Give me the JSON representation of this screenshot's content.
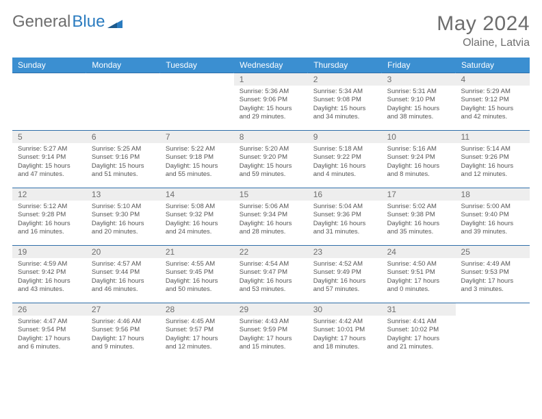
{
  "logo": {
    "part1": "General",
    "part2": "Blue"
  },
  "title": {
    "month": "May 2024",
    "location": "Olaine, Latvia"
  },
  "colors": {
    "header_bg": "#3b8fd1",
    "header_text": "#ffffff",
    "border": "#2d6da8",
    "daynum_bg": "#eeeeee",
    "text_muted": "#6d6d6d",
    "body_text": "#555555",
    "logo_blue": "#2a7bbf"
  },
  "calendar": {
    "headers": [
      "Sunday",
      "Monday",
      "Tuesday",
      "Wednesday",
      "Thursday",
      "Friday",
      "Saturday"
    ],
    "weeks": [
      [
        {
          "num": "",
          "lines": []
        },
        {
          "num": "",
          "lines": []
        },
        {
          "num": "",
          "lines": []
        },
        {
          "num": "1",
          "lines": [
            "Sunrise: 5:36 AM",
            "Sunset: 9:06 PM",
            "Daylight: 15 hours",
            "and 29 minutes."
          ]
        },
        {
          "num": "2",
          "lines": [
            "Sunrise: 5:34 AM",
            "Sunset: 9:08 PM",
            "Daylight: 15 hours",
            "and 34 minutes."
          ]
        },
        {
          "num": "3",
          "lines": [
            "Sunrise: 5:31 AM",
            "Sunset: 9:10 PM",
            "Daylight: 15 hours",
            "and 38 minutes."
          ]
        },
        {
          "num": "4",
          "lines": [
            "Sunrise: 5:29 AM",
            "Sunset: 9:12 PM",
            "Daylight: 15 hours",
            "and 42 minutes."
          ]
        }
      ],
      [
        {
          "num": "5",
          "lines": [
            "Sunrise: 5:27 AM",
            "Sunset: 9:14 PM",
            "Daylight: 15 hours",
            "and 47 minutes."
          ]
        },
        {
          "num": "6",
          "lines": [
            "Sunrise: 5:25 AM",
            "Sunset: 9:16 PM",
            "Daylight: 15 hours",
            "and 51 minutes."
          ]
        },
        {
          "num": "7",
          "lines": [
            "Sunrise: 5:22 AM",
            "Sunset: 9:18 PM",
            "Daylight: 15 hours",
            "and 55 minutes."
          ]
        },
        {
          "num": "8",
          "lines": [
            "Sunrise: 5:20 AM",
            "Sunset: 9:20 PM",
            "Daylight: 15 hours",
            "and 59 minutes."
          ]
        },
        {
          "num": "9",
          "lines": [
            "Sunrise: 5:18 AM",
            "Sunset: 9:22 PM",
            "Daylight: 16 hours",
            "and 4 minutes."
          ]
        },
        {
          "num": "10",
          "lines": [
            "Sunrise: 5:16 AM",
            "Sunset: 9:24 PM",
            "Daylight: 16 hours",
            "and 8 minutes."
          ]
        },
        {
          "num": "11",
          "lines": [
            "Sunrise: 5:14 AM",
            "Sunset: 9:26 PM",
            "Daylight: 16 hours",
            "and 12 minutes."
          ]
        }
      ],
      [
        {
          "num": "12",
          "lines": [
            "Sunrise: 5:12 AM",
            "Sunset: 9:28 PM",
            "Daylight: 16 hours",
            "and 16 minutes."
          ]
        },
        {
          "num": "13",
          "lines": [
            "Sunrise: 5:10 AM",
            "Sunset: 9:30 PM",
            "Daylight: 16 hours",
            "and 20 minutes."
          ]
        },
        {
          "num": "14",
          "lines": [
            "Sunrise: 5:08 AM",
            "Sunset: 9:32 PM",
            "Daylight: 16 hours",
            "and 24 minutes."
          ]
        },
        {
          "num": "15",
          "lines": [
            "Sunrise: 5:06 AM",
            "Sunset: 9:34 PM",
            "Daylight: 16 hours",
            "and 28 minutes."
          ]
        },
        {
          "num": "16",
          "lines": [
            "Sunrise: 5:04 AM",
            "Sunset: 9:36 PM",
            "Daylight: 16 hours",
            "and 31 minutes."
          ]
        },
        {
          "num": "17",
          "lines": [
            "Sunrise: 5:02 AM",
            "Sunset: 9:38 PM",
            "Daylight: 16 hours",
            "and 35 minutes."
          ]
        },
        {
          "num": "18",
          "lines": [
            "Sunrise: 5:00 AM",
            "Sunset: 9:40 PM",
            "Daylight: 16 hours",
            "and 39 minutes."
          ]
        }
      ],
      [
        {
          "num": "19",
          "lines": [
            "Sunrise: 4:59 AM",
            "Sunset: 9:42 PM",
            "Daylight: 16 hours",
            "and 43 minutes."
          ]
        },
        {
          "num": "20",
          "lines": [
            "Sunrise: 4:57 AM",
            "Sunset: 9:44 PM",
            "Daylight: 16 hours",
            "and 46 minutes."
          ]
        },
        {
          "num": "21",
          "lines": [
            "Sunrise: 4:55 AM",
            "Sunset: 9:45 PM",
            "Daylight: 16 hours",
            "and 50 minutes."
          ]
        },
        {
          "num": "22",
          "lines": [
            "Sunrise: 4:54 AM",
            "Sunset: 9:47 PM",
            "Daylight: 16 hours",
            "and 53 minutes."
          ]
        },
        {
          "num": "23",
          "lines": [
            "Sunrise: 4:52 AM",
            "Sunset: 9:49 PM",
            "Daylight: 16 hours",
            "and 57 minutes."
          ]
        },
        {
          "num": "24",
          "lines": [
            "Sunrise: 4:50 AM",
            "Sunset: 9:51 PM",
            "Daylight: 17 hours",
            "and 0 minutes."
          ]
        },
        {
          "num": "25",
          "lines": [
            "Sunrise: 4:49 AM",
            "Sunset: 9:53 PM",
            "Daylight: 17 hours",
            "and 3 minutes."
          ]
        }
      ],
      [
        {
          "num": "26",
          "lines": [
            "Sunrise: 4:47 AM",
            "Sunset: 9:54 PM",
            "Daylight: 17 hours",
            "and 6 minutes."
          ]
        },
        {
          "num": "27",
          "lines": [
            "Sunrise: 4:46 AM",
            "Sunset: 9:56 PM",
            "Daylight: 17 hours",
            "and 9 minutes."
          ]
        },
        {
          "num": "28",
          "lines": [
            "Sunrise: 4:45 AM",
            "Sunset: 9:57 PM",
            "Daylight: 17 hours",
            "and 12 minutes."
          ]
        },
        {
          "num": "29",
          "lines": [
            "Sunrise: 4:43 AM",
            "Sunset: 9:59 PM",
            "Daylight: 17 hours",
            "and 15 minutes."
          ]
        },
        {
          "num": "30",
          "lines": [
            "Sunrise: 4:42 AM",
            "Sunset: 10:01 PM",
            "Daylight: 17 hours",
            "and 18 minutes."
          ]
        },
        {
          "num": "31",
          "lines": [
            "Sunrise: 4:41 AM",
            "Sunset: 10:02 PM",
            "Daylight: 17 hours",
            "and 21 minutes."
          ]
        },
        {
          "num": "",
          "lines": []
        }
      ]
    ]
  }
}
